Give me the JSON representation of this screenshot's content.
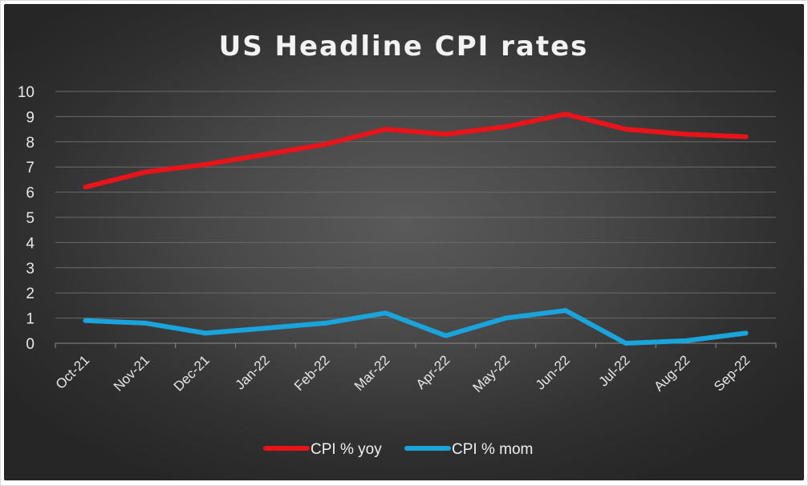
{
  "chart_data": {
    "type": "line",
    "title": "US Headline CPI rates",
    "categories": [
      "Oct-21",
      "Nov-21",
      "Dec-21",
      "Jan-22",
      "Feb-22",
      "Mar-22",
      "Apr-22",
      "May-22",
      "Jun-22",
      "Jul-22",
      "Aug-22",
      "Sep-22"
    ],
    "series": [
      {
        "name": "CPI % yoy",
        "color": "#e8141a",
        "values": [
          6.2,
          6.8,
          7.1,
          7.5,
          7.9,
          8.5,
          8.3,
          8.6,
          9.1,
          8.5,
          8.3,
          8.2
        ]
      },
      {
        "name": "CPI % mom",
        "color": "#19a4dc",
        "values": [
          0.9,
          0.8,
          0.4,
          0.6,
          0.8,
          1.2,
          0.3,
          1.0,
          1.3,
          0.0,
          0.1,
          0.4
        ]
      }
    ],
    "ylim": [
      0,
      10
    ],
    "yticks": [
      "0",
      "1",
      "2",
      "3",
      "4",
      "5",
      "6",
      "7",
      "8",
      "9",
      "10"
    ],
    "xlabel": "",
    "ylabel": "",
    "grid": true,
    "legend_position": "bottom"
  }
}
